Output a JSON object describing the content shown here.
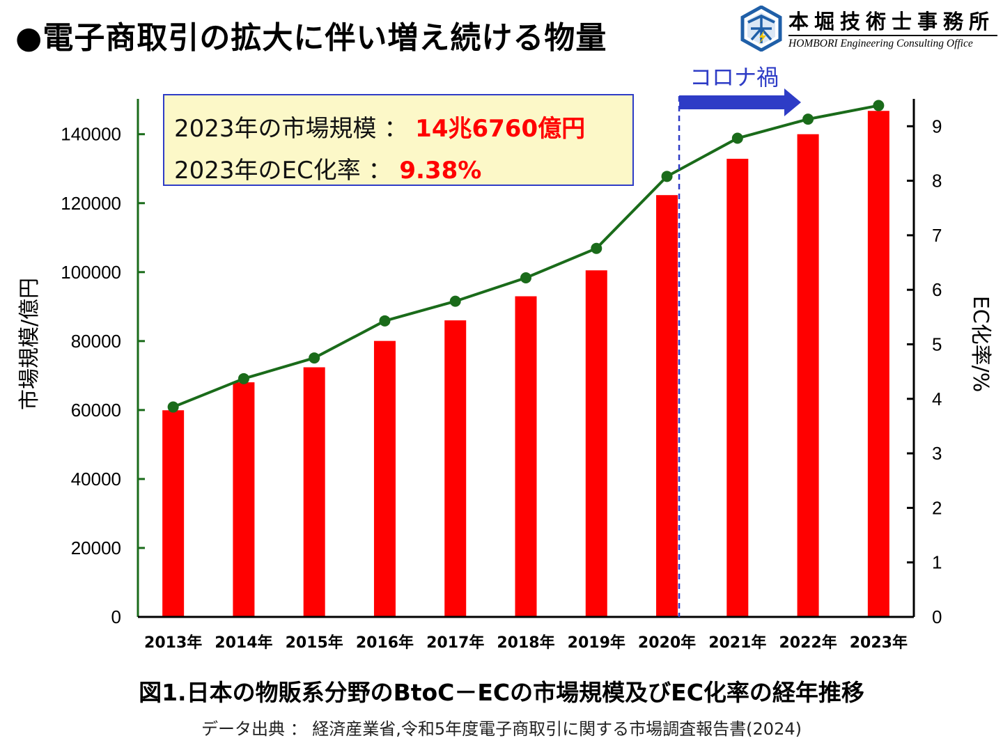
{
  "title": "●電子商取引の拡大に伴い増え続ける物量",
  "logo": {
    "name": "本堀技術士事務所",
    "subtitle": "HOMBORI Engineering Consulting Office",
    "icon": "hombori-logo-icon",
    "brand_color": "#1f5fa8"
  },
  "info_box": {
    "row1_label": "2023年の市場規模 ：",
    "row1_value": "14兆6760億円",
    "row2_label": "2023年のEC化率 ：",
    "row2_value": "9.38%"
  },
  "annotation": {
    "label": "コロナ禍"
  },
  "caption": "図1.日本の物販系分野のBtoC－ECの市場規模及びEC化率の経年推移",
  "source": "データ出典 ： 経済産業省,令和5年度電子商取引に関する市場調査報告書(2024)",
  "colors": {
    "bar": "#ff0000",
    "line": "#1a6b1a",
    "accent": "#2e3cc6",
    "box_bg": "#fcf8c8"
  },
  "chart_data": {
    "type": "bar",
    "categories": [
      "2013年",
      "2014年",
      "2015年",
      "2016年",
      "2017年",
      "2018年",
      "2019年",
      "2020年",
      "2021年",
      "2022年",
      "2023年"
    ],
    "series": [
      {
        "type": "bar",
        "axis": "left",
        "values": [
          59931,
          68043,
          72398,
          80043,
          86008,
          92992,
          100515,
          122333,
          132865,
          139997,
          146760
        ]
      },
      {
        "type": "line",
        "axis": "right",
        "values": [
          3.85,
          4.37,
          4.75,
          5.43,
          5.79,
          6.22,
          6.76,
          8.08,
          8.78,
          9.13,
          9.38
        ]
      }
    ],
    "ylabel": "市場規模/億円",
    "y2label": "EC化率/%",
    "ylim": [
      0,
      150000
    ],
    "y2lim": [
      0,
      9.5
    ],
    "yticks": [
      0,
      20000,
      40000,
      60000,
      80000,
      100000,
      120000,
      140000
    ],
    "y2ticks": [
      0,
      1,
      2,
      3,
      4,
      5,
      6,
      7,
      8,
      9
    ],
    "grid": false,
    "annotation_range": [
      "2020年",
      "2023年"
    ]
  }
}
